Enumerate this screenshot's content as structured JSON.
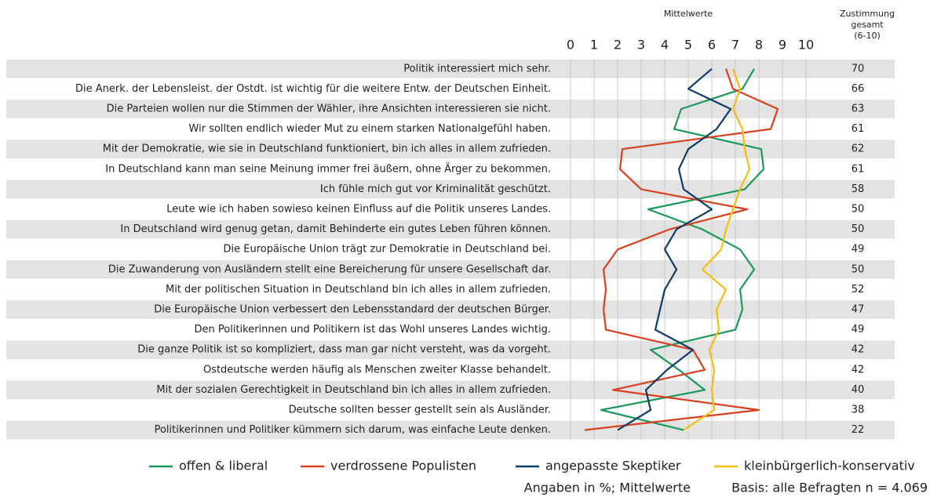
{
  "chart_data": {
    "type": "line",
    "title": "Mittelwerte",
    "approval_header": [
      "Zustimmung",
      "gesamt",
      "(6-10)"
    ],
    "categories": [
      "Politik interessiert mich sehr.",
      "Die Anerk. der Lebensleist. der Ostdt. ist wichtig für die weitere Entw. der Deutschen Einheit.",
      "Die Parteien wollen nur die Stimmen der Wähler, ihre Ansichten interessieren sie nicht.",
      "Wir sollten endlich wieder Mut zu einem starken Nationalgefühl haben.",
      "Mit der Demokratie, wie sie in Deutschland funktioniert, bin ich alles in allem zufrieden.",
      "In Deutschland kann man seine Meinung immer frei äußern, ohne Ärger zu bekommen.",
      "Ich fühle mich gut vor Kriminalität geschützt.",
      "Leute wie ich haben sowieso keinen Einfluss auf die Politik unseres Landes.",
      "In Deutschland wird genug getan, damit Behinderte ein gutes Leben führen können.",
      "Die Europäische Union trägt zur Demokratie in Deutschland bei.",
      "Die Zuwanderung von Ausländern stellt eine Bereicherung für unsere Gesellschaft dar.",
      "Mit der politischen Situation in Deutschland bin ich alles in allem zufrieden.",
      "Die Europäische Union verbessert den Lebensstandard der deutschen Bürger.",
      "Den Politikerinnen und Politikern ist das Wohl unseres Landes wichtig.",
      "Die ganze Politik ist so kompliziert, dass man gar nicht versteht, was da vorgeht.",
      "Ostdeutsche werden häufig als Menschen zweiter Klasse behandelt.",
      "Mit der sozialen Gerechtigkeit in Deutschland bin ich alles in allem zufrieden.",
      "Deutsche sollten besser gestellt sein als Ausländer.",
      "Politikerinnen und Politiker kümmern sich darum, was einfache Leute denken."
    ],
    "approval": [
      70,
      66,
      63,
      61,
      62,
      61,
      58,
      50,
      50,
      49,
      50,
      52,
      47,
      49,
      42,
      42,
      40,
      38,
      22
    ],
    "series": [
      {
        "name": "offen & liberal",
        "color": "#1a9a5a",
        "values": [
          7.8,
          7.3,
          4.7,
          4.4,
          8.1,
          8.2,
          7.4,
          3.3,
          5.6,
          7.2,
          7.8,
          7.2,
          7.3,
          7.0,
          3.4,
          4.6,
          5.7,
          1.3,
          4.8
        ]
      },
      {
        "name": "verdrossene Populisten",
        "color": "#d9411e",
        "values": [
          6.6,
          6.9,
          8.8,
          8.5,
          2.2,
          2.1,
          3.0,
          7.5,
          4.2,
          2.0,
          1.4,
          1.5,
          1.4,
          1.5,
          5.2,
          5.7,
          1.8,
          8.0,
          0.6
        ]
      },
      {
        "name": "angepasste Skeptiker",
        "color": "#0e3d6b",
        "values": [
          6.0,
          5.0,
          6.8,
          6.2,
          5.0,
          4.6,
          4.8,
          6.0,
          4.5,
          4.0,
          4.5,
          4.0,
          3.8,
          3.6,
          5.2,
          4.1,
          3.2,
          3.4,
          2.0
        ]
      },
      {
        "name": "kleinbürgerlich-konservativ",
        "color": "#f5bd12",
        "values": [
          6.9,
          7.2,
          6.9,
          7.3,
          7.4,
          7.6,
          7.2,
          6.9,
          6.6,
          6.4,
          5.6,
          6.6,
          6.2,
          6.3,
          5.9,
          6.1,
          6.0,
          6.1,
          4.8
        ]
      }
    ],
    "xlim": [
      0,
      10
    ],
    "xticks": [
      0,
      1,
      2,
      3,
      4,
      5,
      6,
      7,
      8,
      9,
      10
    ],
    "grid": true,
    "footnotes": [
      "Angaben in %; Mittelwerte",
      "Basis: alle Befragten n = 4.069"
    ]
  }
}
